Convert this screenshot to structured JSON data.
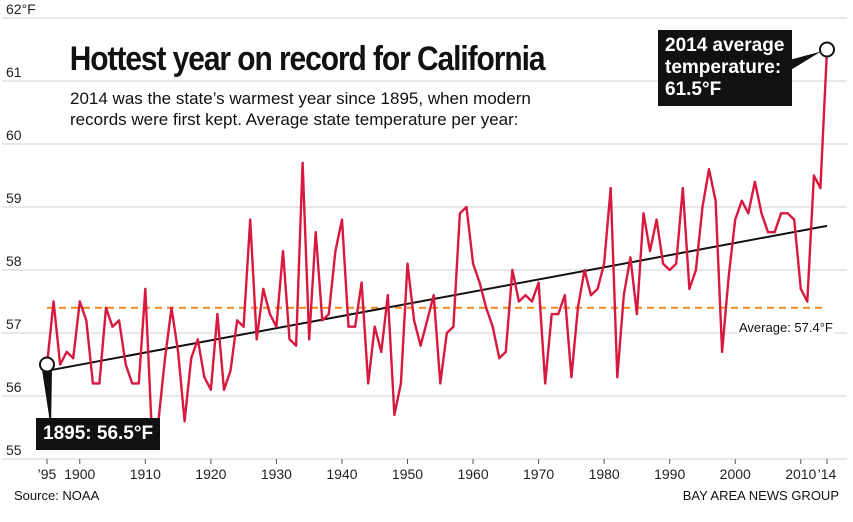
{
  "title": "Hottest year on record for California",
  "subtitle": "2014 was the state’s warmest year since 1895, when modern records were first kept. Average state temperature per year:",
  "source": "Source: NOAA",
  "credit": "BAY AREA NEWS GROUP",
  "callouts": {
    "end": "2014 average temperature: 61.5°F",
    "start": "1895: 56.5°F",
    "average": "Average: 57.4°F"
  },
  "colors": {
    "series": "#d7193f",
    "average_line": "#ef8a1e",
    "trend_line": "#111111",
    "grid": "#cfcfcf"
  },
  "chart_data": {
    "type": "line",
    "title": "Hottest year on record for California",
    "xlabel": "",
    "ylabel": "",
    "xlim": [
      1895,
      2014
    ],
    "ylim": [
      55,
      62
    ],
    "x_ticks": [
      "’95",
      "1900",
      "1910",
      "1920",
      "1930",
      "1940",
      "1950",
      "1960",
      "1970",
      "1980",
      "1990",
      "2000",
      "2010",
      "’14"
    ],
    "x_tick_years": [
      1895,
      1900,
      1910,
      1920,
      1930,
      1940,
      1950,
      1960,
      1970,
      1980,
      1990,
      2000,
      2010,
      2014
    ],
    "y_ticks": [
      "55",
      "56",
      "57",
      "58",
      "59",
      "60",
      "61",
      "62°F"
    ],
    "y_tick_values": [
      55,
      56,
      57,
      58,
      59,
      60,
      61,
      62
    ],
    "grid": true,
    "average": 57.4,
    "trend": {
      "start": [
        1895,
        56.4
      ],
      "end": [
        2014,
        58.7
      ]
    },
    "series": [
      {
        "x": [
          1895,
          1896,
          1897,
          1898,
          1899,
          1900,
          1901,
          1902,
          1903,
          1904,
          1905,
          1906,
          1907,
          1908,
          1909,
          1910,
          1911,
          1912,
          1913,
          1914,
          1915,
          1916,
          1917,
          1918,
          1919,
          1920,
          1921,
          1922,
          1923,
          1924,
          1925,
          1926,
          1927,
          1928,
          1929,
          1930,
          1931,
          1932,
          1933,
          1934,
          1935,
          1936,
          1937,
          1938,
          1939,
          1940,
          1941,
          1942,
          1943,
          1944,
          1945,
          1946,
          1947,
          1948,
          1949,
          1950,
          1951,
          1952,
          1953,
          1954,
          1955,
          1956,
          1957,
          1958,
          1959,
          1960,
          1961,
          1962,
          1963,
          1964,
          1965,
          1966,
          1967,
          1968,
          1969,
          1970,
          1971,
          1972,
          1973,
          1974,
          1975,
          1976,
          1977,
          1978,
          1979,
          1980,
          1981,
          1982,
          1983,
          1984,
          1985,
          1986,
          1987,
          1988,
          1989,
          1990,
          1991,
          1992,
          1993,
          1994,
          1995,
          1996,
          1997,
          1998,
          1999,
          2000,
          2001,
          2002,
          2003,
          2004,
          2005,
          2006,
          2007,
          2008,
          2009,
          2010,
          2011,
          2012,
          2013,
          2014
        ],
        "values": [
          56.5,
          57.5,
          56.5,
          56.7,
          56.6,
          57.5,
          57.2,
          56.2,
          56.2,
          57.4,
          57.1,
          57.2,
          56.5,
          56.2,
          56.2,
          57.7,
          55.4,
          55.6,
          56.6,
          57.4,
          56.7,
          55.6,
          56.6,
          56.9,
          56.3,
          56.1,
          57.3,
          56.1,
          56.4,
          57.2,
          57.1,
          58.8,
          56.9,
          57.7,
          57.3,
          57.1,
          58.3,
          56.9,
          56.8,
          59.7,
          56.9,
          58.6,
          57.2,
          57.3,
          58.3,
          58.8,
          57.1,
          57.1,
          57.8,
          56.2,
          57.1,
          56.7,
          57.6,
          55.7,
          56.2,
          58.1,
          57.2,
          56.8,
          57.2,
          57.6,
          56.2,
          57.0,
          57.1,
          58.9,
          59.0,
          58.1,
          57.8,
          57.4,
          57.1,
          56.6,
          56.7,
          58.0,
          57.5,
          57.6,
          57.5,
          57.8,
          56.2,
          57.3,
          57.3,
          57.6,
          56.3,
          57.4,
          58.0,
          57.6,
          57.7,
          58.1,
          59.3,
          56.3,
          57.6,
          58.2,
          57.3,
          58.9,
          58.3,
          58.8,
          58.1,
          58.0,
          58.1,
          59.3,
          57.7,
          58.0,
          59.0,
          59.6,
          59.1,
          56.7,
          57.9,
          58.8,
          59.1,
          58.9,
          59.4,
          58.9,
          58.6,
          58.6,
          58.9,
          58.9,
          58.8,
          57.7,
          57.5,
          59.5,
          59.3,
          61.5
        ]
      }
    ]
  }
}
